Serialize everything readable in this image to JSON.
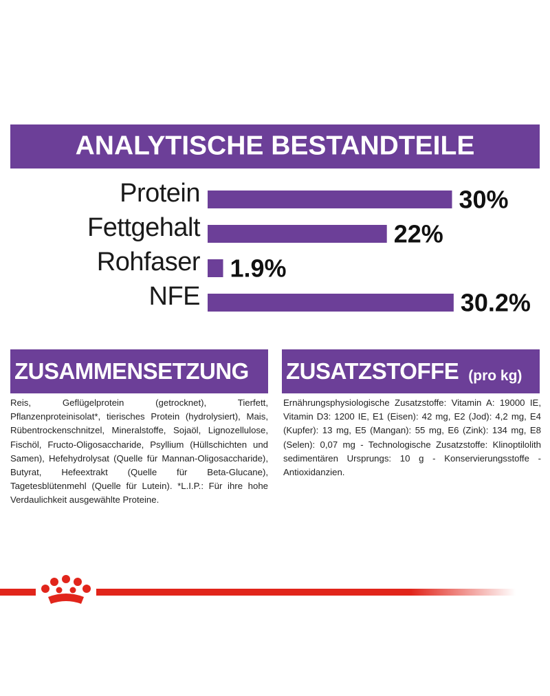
{
  "chart_data": {
    "type": "bar",
    "orientation": "horizontal",
    "title": "ANALYTISCHE BESTANDTEILE",
    "categories": [
      "Protein",
      "Fettgehalt",
      "Rohfaser",
      "NFE"
    ],
    "values": [
      30,
      22,
      1.9,
      30.2
    ],
    "value_labels": [
      "30%",
      "22%",
      "1.9%",
      "30.2%"
    ],
    "color": "#6c3f98"
  },
  "sections": [
    {
      "title": "ZUSAMMENSETZUNG",
      "text": "Reis, Geflügelprotein (getrocknet), Tierfett, Pflanzenproteinisolat*, tierisches Protein (hydrolysiert), Mais, Rübentrockenschnitzel, Mineralstoffe, Sojaöl, Lignozellulose, Fischöl, Fructo-Oligosaccharide, Psyllium (Hüllschichten und Samen), Hefehydrolysat (Quelle für Mannan-Oligosaccharide), Butyrat, Hefeextrakt (Quelle für Beta-Glucane), Tagetesblütenmehl (Quelle für Lutein). *L.I.P.: Für ihre hohe Verdaulichkeit ausgewählte Proteine."
    },
    {
      "title": "ZUSATZSTOFFE",
      "subtitle": "(pro kg)",
      "text": "Ernährungsphysiologische Zusatzstoffe: Vitamin A: 19000 IE, Vitamin D3: 1200 IE, E1 (Eisen): 42 mg, E2 (Jod): 4,2 mg, E4 (Kupfer): 13 mg, E5 (Mangan): 55 mg, E6 (Zink): 134 mg, E8 (Selen): 0,07 mg - Technologische Zusatzstoffe: Klinoptilolith sedimentären Ursprungs: 10 g - Konservierungsstoffe - Antioxidanzien."
    }
  ]
}
